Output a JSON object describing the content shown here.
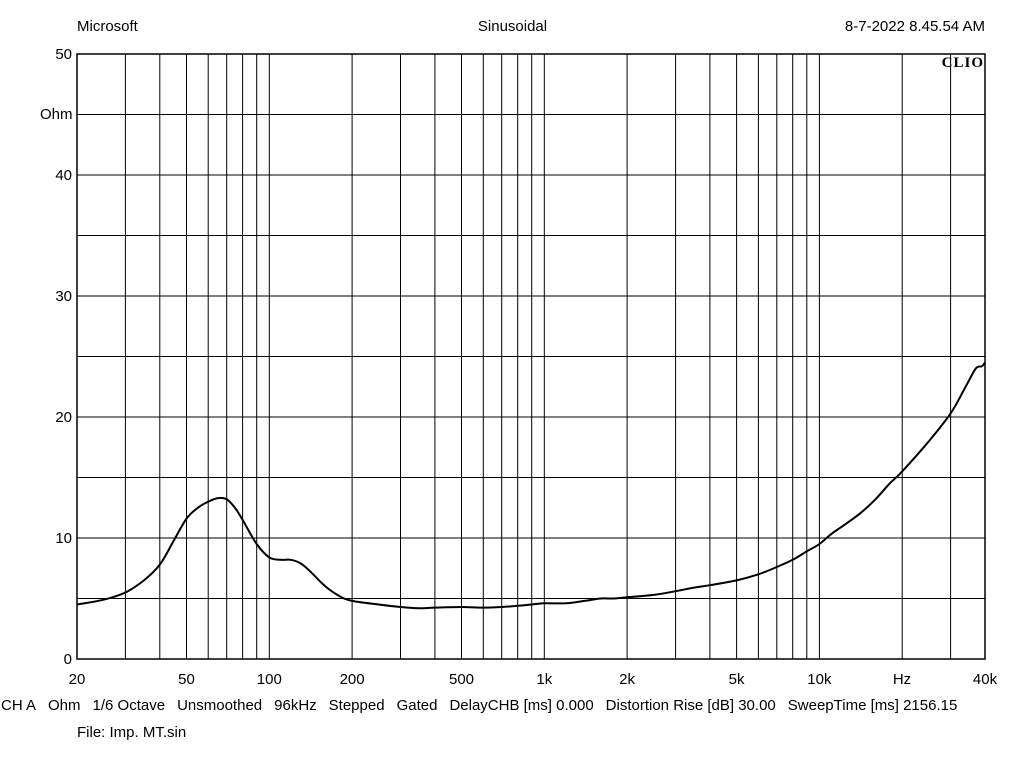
{
  "header": {
    "left": "Microsoft",
    "center": "Sinusoidal",
    "right": "8-7-2022 8.45.54 AM"
  },
  "logo_text": "CLIO",
  "footer": {
    "settings": [
      "CH A",
      "Ohm",
      "1/6 Octave",
      "Unsmoothed",
      "96kHz",
      "Stepped",
      "Gated",
      "DelayCHB [ms] 0.000",
      "Distortion Rise [dB] 30.00",
      "SweepTime [ms] 2156.15"
    ],
    "file": "File: Imp. MT.sin"
  },
  "chart_data": {
    "type": "line",
    "title": "Sinusoidal",
    "x_scale": "log",
    "xlim": [
      20,
      40000
    ],
    "ylim": [
      0,
      50
    ],
    "xlabel": "Hz",
    "ylabel": "Ohm",
    "x_tick_labels": [
      {
        "value": 20,
        "label": "20"
      },
      {
        "value": 50,
        "label": "50"
      },
      {
        "value": 100,
        "label": "100"
      },
      {
        "value": 200,
        "label": "200"
      },
      {
        "value": 500,
        "label": "500"
      },
      {
        "value": 1000,
        "label": "1k"
      },
      {
        "value": 2000,
        "label": "2k"
      },
      {
        "value": 5000,
        "label": "5k"
      },
      {
        "value": 10000,
        "label": "10k"
      },
      {
        "value": 40000,
        "label": "40k"
      }
    ],
    "y_tick_labels": [
      {
        "value": 0,
        "label": "0"
      },
      {
        "value": 10,
        "label": "10"
      },
      {
        "value": 20,
        "label": "20"
      },
      {
        "value": 30,
        "label": "30"
      },
      {
        "value": 40,
        "label": "40"
      },
      {
        "value": 50,
        "label": "50"
      }
    ],
    "x_grid": [
      20,
      30,
      40,
      50,
      60,
      70,
      80,
      90,
      100,
      200,
      300,
      400,
      500,
      600,
      700,
      800,
      900,
      1000,
      2000,
      3000,
      4000,
      5000,
      6000,
      7000,
      8000,
      9000,
      10000,
      20000,
      30000,
      40000
    ],
    "y_grid": [
      0,
      5,
      10,
      15,
      20,
      25,
      30,
      35,
      40,
      45,
      50
    ],
    "grid": true,
    "series": [
      {
        "color": "#000000",
        "points": [
          [
            20,
            4.5
          ],
          [
            25,
            4.9
          ],
          [
            30,
            5.5
          ],
          [
            35,
            6.5
          ],
          [
            40,
            7.8
          ],
          [
            45,
            9.8
          ],
          [
            50,
            11.6
          ],
          [
            55,
            12.5
          ],
          [
            60,
            13.0
          ],
          [
            65,
            13.3
          ],
          [
            70,
            13.2
          ],
          [
            75,
            12.5
          ],
          [
            80,
            11.5
          ],
          [
            90,
            9.5
          ],
          [
            100,
            8.4
          ],
          [
            110,
            8.2
          ],
          [
            120,
            8.2
          ],
          [
            130,
            7.9
          ],
          [
            140,
            7.3
          ],
          [
            160,
            6.0
          ],
          [
            180,
            5.2
          ],
          [
            200,
            4.8
          ],
          [
            250,
            4.5
          ],
          [
            300,
            4.3
          ],
          [
            350,
            4.2
          ],
          [
            400,
            4.25
          ],
          [
            500,
            4.3
          ],
          [
            600,
            4.25
          ],
          [
            700,
            4.3
          ],
          [
            800,
            4.4
          ],
          [
            900,
            4.5
          ],
          [
            1000,
            4.6
          ],
          [
            1200,
            4.6
          ],
          [
            1400,
            4.8
          ],
          [
            1600,
            5.0
          ],
          [
            1800,
            5.0
          ],
          [
            2000,
            5.1
          ],
          [
            2500,
            5.3
          ],
          [
            3000,
            5.6
          ],
          [
            3500,
            5.9
          ],
          [
            4000,
            6.1
          ],
          [
            5000,
            6.5
          ],
          [
            6000,
            7.0
          ],
          [
            7000,
            7.6
          ],
          [
            8000,
            8.2
          ],
          [
            9000,
            8.9
          ],
          [
            10000,
            9.5
          ],
          [
            11000,
            10.3
          ],
          [
            12000,
            10.9
          ],
          [
            14000,
            12.0
          ],
          [
            16000,
            13.2
          ],
          [
            18000,
            14.5
          ],
          [
            20000,
            15.5
          ],
          [
            25000,
            18.0
          ],
          [
            30000,
            20.3
          ],
          [
            34000,
            22.5
          ],
          [
            37000,
            24.0
          ],
          [
            39000,
            24.2
          ],
          [
            40000,
            24.5
          ]
        ]
      }
    ]
  }
}
